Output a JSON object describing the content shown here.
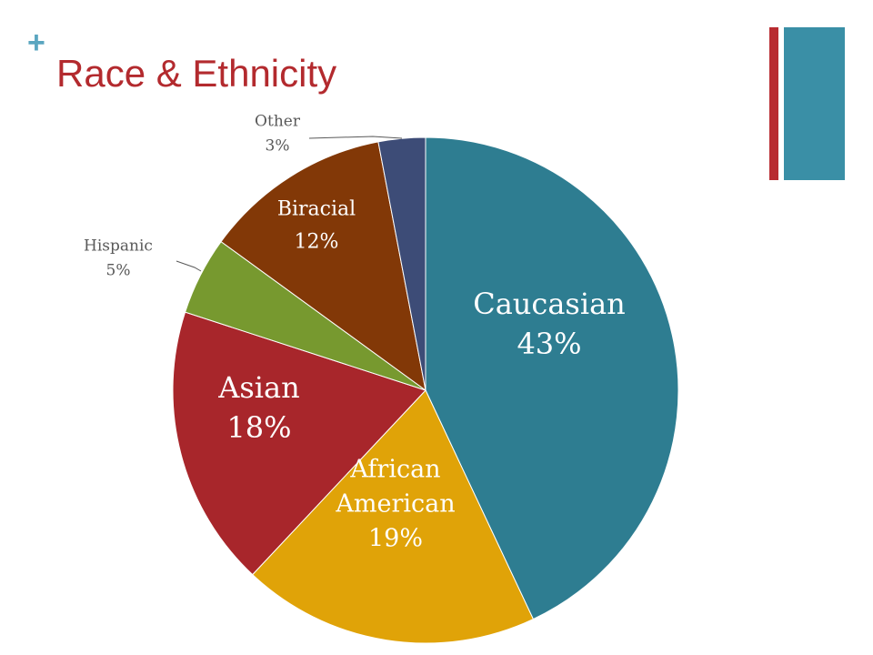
{
  "slide": {
    "plus_glyph": "+",
    "title": "Race & Ethnicity",
    "accent_red": "#b82b30",
    "accent_teal": "#3a8fa6"
  },
  "chart_data": {
    "type": "pie",
    "title": "",
    "slices": [
      {
        "label_lines": [
          "Caucasian"
        ],
        "value": 43,
        "value_text": "43%",
        "color": "#2e7d91"
      },
      {
        "label_lines": [
          "African",
          "American"
        ],
        "value": 19,
        "value_text": "19%",
        "color": "#e0a308"
      },
      {
        "label_lines": [
          "Asian"
        ],
        "value": 18,
        "value_text": "18%",
        "color": "#a8262b"
      },
      {
        "label_lines": [
          "Hispanic"
        ],
        "value": 5,
        "value_text": "5%",
        "color": "#77992f"
      },
      {
        "label_lines": [
          "Biracial"
        ],
        "value": 12,
        "value_text": "12%",
        "color": "#823807"
      },
      {
        "label_lines": [
          "Other"
        ],
        "value": 3,
        "value_text": "3%",
        "color": "#3d4c77"
      }
    ]
  }
}
